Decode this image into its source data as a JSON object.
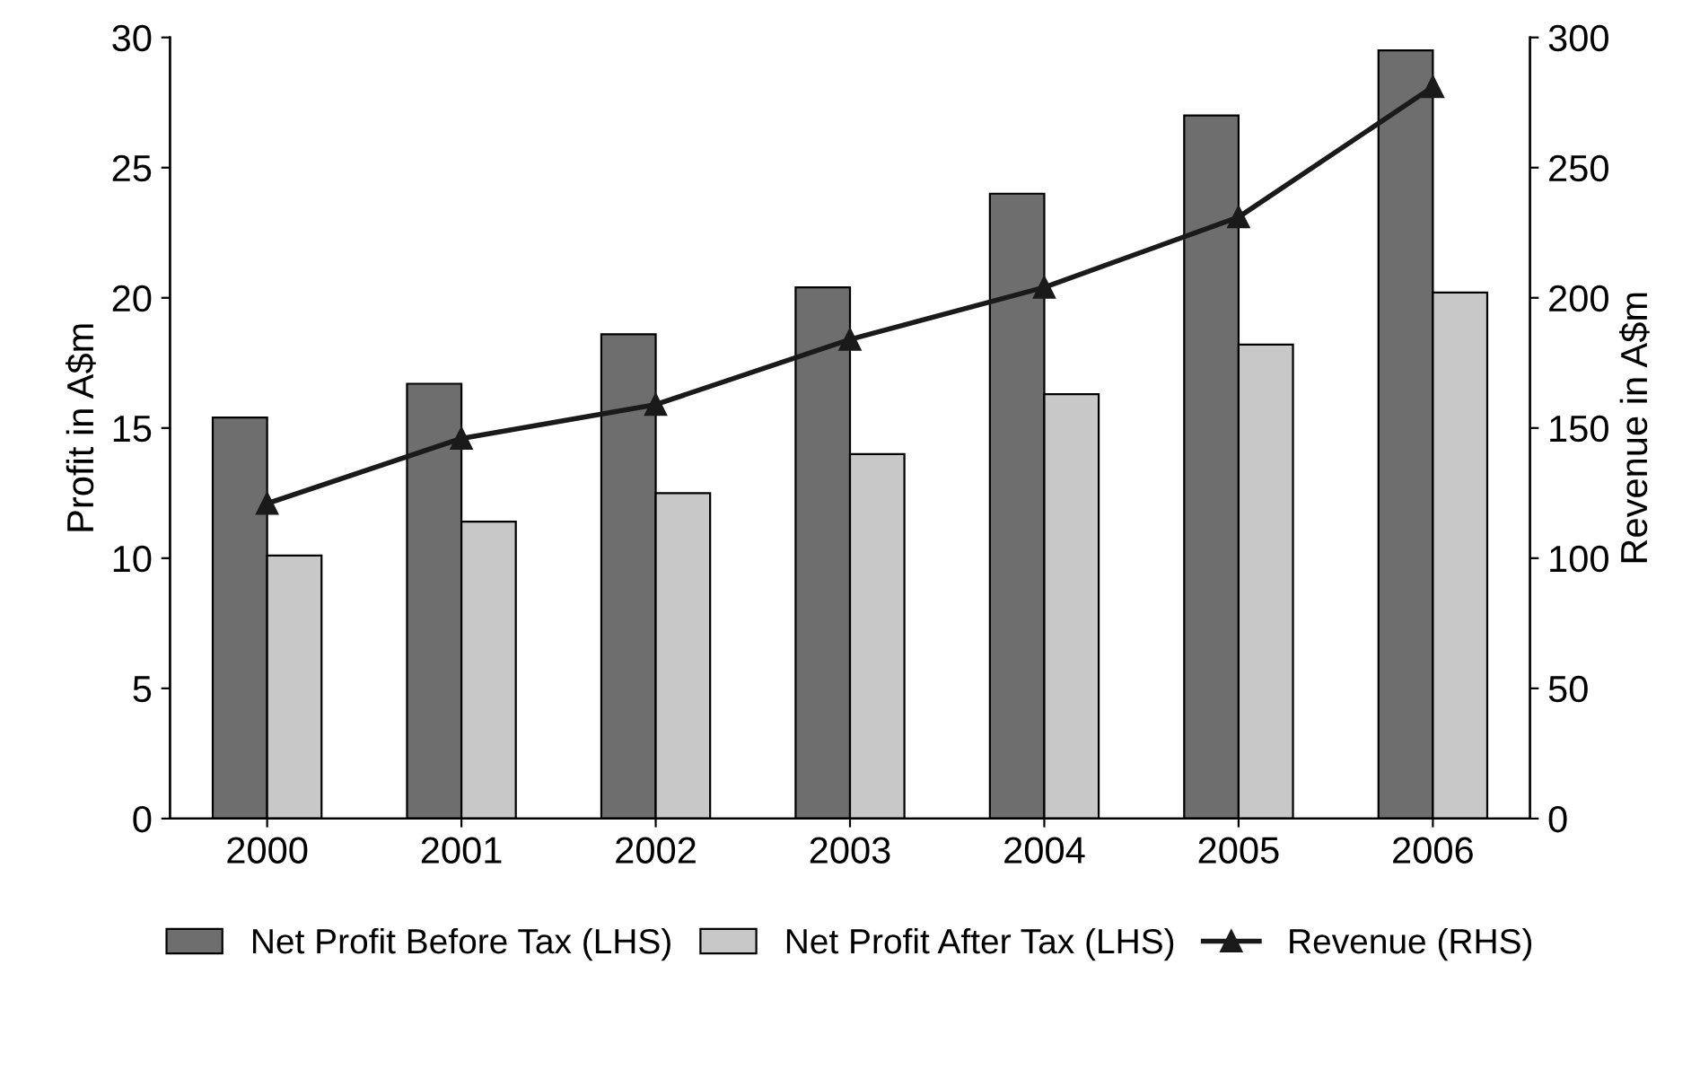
{
  "chart_data": {
    "type": "bar",
    "ylabel": "Profit in A$m",
    "y2label": "Revenue in A$m",
    "categories": [
      "2000",
      "2001",
      "2002",
      "2003",
      "2004",
      "2005",
      "2006"
    ],
    "series": [
      {
        "name": "Net Profit Before Tax (LHS)",
        "color": "#6e6e6e",
        "values": [
          15.4,
          16.7,
          18.6,
          20.4,
          24.0,
          27.0,
          29.5
        ]
      },
      {
        "name": "Net Profit After Tax (LHS)",
        "color": "#c8c8c8",
        "values": [
          10.1,
          11.4,
          12.5,
          14.0,
          16.3,
          18.2,
          20.2
        ]
      },
      {
        "name": "Revenue (RHS)",
        "type": "line",
        "axis": "y2",
        "color": "#1a1a1a",
        "marker": "triangle",
        "values": [
          121,
          146,
          159,
          184,
          204,
          231,
          281
        ]
      }
    ],
    "ylim": [
      0,
      30
    ],
    "yticks": [
      0,
      5,
      10,
      15,
      20,
      25,
      30
    ],
    "y2lim": [
      0,
      300
    ],
    "y2ticks": [
      0,
      50,
      100,
      150,
      200,
      250,
      300
    ],
    "grid": false,
    "legend": "bottom"
  }
}
